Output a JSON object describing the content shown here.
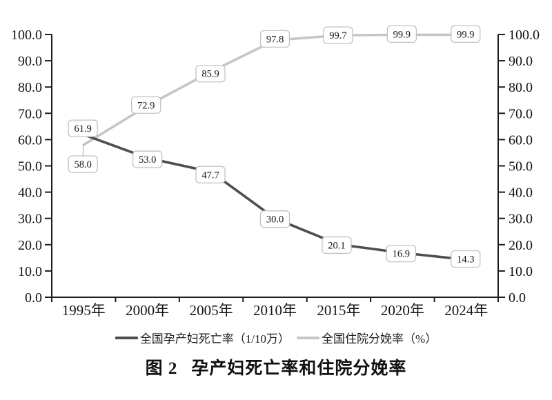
{
  "figure_caption": {
    "prefix": "图 2",
    "title": "孕产妇死亡率和住院分娩率"
  },
  "chart_data": {
    "type": "line",
    "categories": [
      "1995年",
      "2000年",
      "2005年",
      "2010年",
      "2015年",
      "2020年",
      "2024年"
    ],
    "series": [
      {
        "name": "全国孕产妇死亡率（1/10万）",
        "values": [
          61.9,
          53.0,
          47.7,
          30.0,
          20.1,
          16.9,
          14.3
        ],
        "color": "#4e4e50"
      },
      {
        "name": "全国住院分娩率（%）",
        "values": [
          58.0,
          72.9,
          85.9,
          97.8,
          99.7,
          99.9,
          99.9
        ],
        "color": "#c6c6c6"
      }
    ],
    "y_axis": {
      "min": 0,
      "max": 100,
      "step": 10,
      "tick_labels": [
        "0.0",
        "10.0",
        "20.0",
        "30.0",
        "40.0",
        "50.0",
        "60.0",
        "70.0",
        "80.0",
        "90.0",
        "100.0"
      ],
      "sides": [
        "left",
        "right"
      ]
    },
    "x_axis": {
      "unit_suffix": "年"
    },
    "legend_position": "bottom",
    "grid": false,
    "data_labels": true,
    "data_label_format": "0.0",
    "axis_color": "#1c1c1c",
    "text_color": "#141414",
    "label_box": {
      "fill": "#ffffff",
      "border": "#c2c2c2",
      "text_color": "#141414"
    },
    "leader_line_color": "#b3b3b3"
  }
}
